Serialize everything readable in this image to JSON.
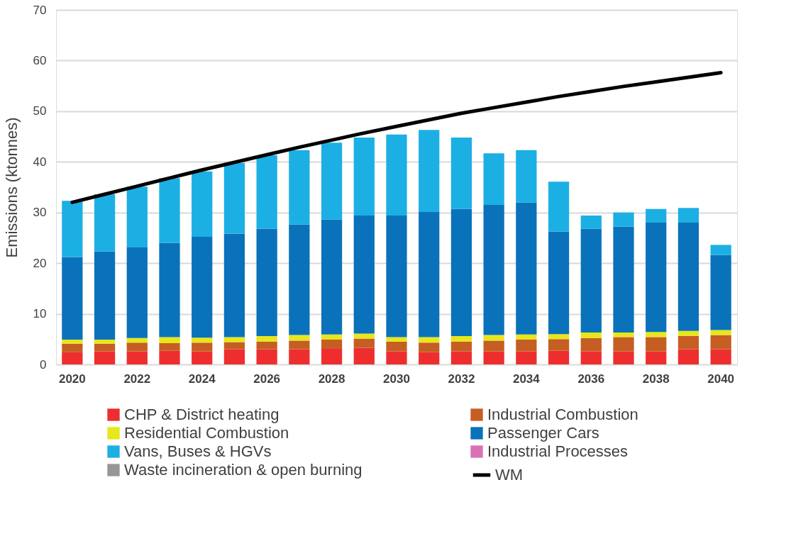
{
  "chart_data": {
    "type": "bar",
    "stacked": true,
    "ylabel": "Emissions (ktonnes)",
    "categories": [
      "2020",
      null,
      "2022",
      null,
      "2024",
      null,
      "2026",
      null,
      "2028",
      null,
      "2030",
      null,
      "2032",
      null,
      "2034",
      null,
      "2036",
      null,
      "2038",
      null,
      "2040"
    ],
    "ylim": [
      0,
      70
    ],
    "yticks": [
      0,
      10,
      20,
      30,
      40,
      50,
      60,
      70
    ],
    "grid": "y",
    "legend": "bottom",
    "series": [
      {
        "name": "CHP & District heating",
        "color": "#ee2e2e",
        "values": [
          2.4,
          2.6,
          2.6,
          2.7,
          2.6,
          3.0,
          3.0,
          3.0,
          3.2,
          3.3,
          2.6,
          2.4,
          2.6,
          2.6,
          2.6,
          2.7,
          2.6,
          2.6,
          2.6,
          3.0,
          3.0
        ]
      },
      {
        "name": "Industrial Combustion",
        "color": "#c55e23",
        "values": [
          1.7,
          1.5,
          1.7,
          1.5,
          1.7,
          1.4,
          1.5,
          1.7,
          1.7,
          1.8,
          1.9,
          1.9,
          1.9,
          2.1,
          2.3,
          2.3,
          2.6,
          2.8,
          2.8,
          2.6,
          2.8
        ]
      },
      {
        "name": "Residential Combustion",
        "color": "#e8e61c",
        "values": [
          0.8,
          0.8,
          0.9,
          1.2,
          1.0,
          1.0,
          1.1,
          1.1,
          1.0,
          1.0,
          0.9,
          1.1,
          1.1,
          1.1,
          1.0,
          1.0,
          1.1,
          0.9,
          1.0,
          1.0,
          1.0
        ]
      },
      {
        "name": "Passenger Cars",
        "color": "#0a72ba",
        "values": [
          16.3,
          17.4,
          17.9,
          18.6,
          19.9,
          20.4,
          21.2,
          21.8,
          22.7,
          23.3,
          24.0,
          24.7,
          25.1,
          25.7,
          26.1,
          20.2,
          20.5,
          20.9,
          21.6,
          21.4,
          14.8
        ]
      },
      {
        "name": "Vans, Buses & HGVs",
        "color": "#1cafe4",
        "values": [
          11.1,
          11.3,
          12.0,
          12.8,
          12.9,
          14.0,
          14.5,
          14.7,
          15.2,
          15.4,
          16.0,
          16.2,
          14.1,
          10.2,
          10.3,
          9.9,
          2.6,
          2.8,
          2.7,
          2.9,
          2.0
        ]
      },
      {
        "name": "Industrial Processes",
        "color": "#d972b4",
        "values": [
          null,
          null,
          null,
          null,
          null,
          null,
          null,
          null,
          null,
          null,
          null,
          null,
          null,
          null,
          null,
          null,
          null,
          null,
          null,
          null,
          null
        ]
      },
      {
        "name": "Waste incineration & open burning",
        "color": "#969696",
        "values": [
          null,
          null,
          null,
          null,
          null,
          null,
          null,
          null,
          null,
          null,
          null,
          null,
          null,
          null,
          null,
          null,
          null,
          null,
          null,
          null,
          null
        ]
      },
      {
        "name": "WM",
        "type": "line",
        "color": "#000000",
        "values": [
          32.0,
          33.6,
          35.2,
          36.8,
          38.4,
          39.9,
          41.4,
          42.9,
          44.3,
          45.7,
          47.0,
          48.3,
          49.6,
          50.7,
          51.8,
          52.9,
          53.9,
          54.9,
          55.8,
          56.7,
          57.6
        ]
      }
    ]
  }
}
